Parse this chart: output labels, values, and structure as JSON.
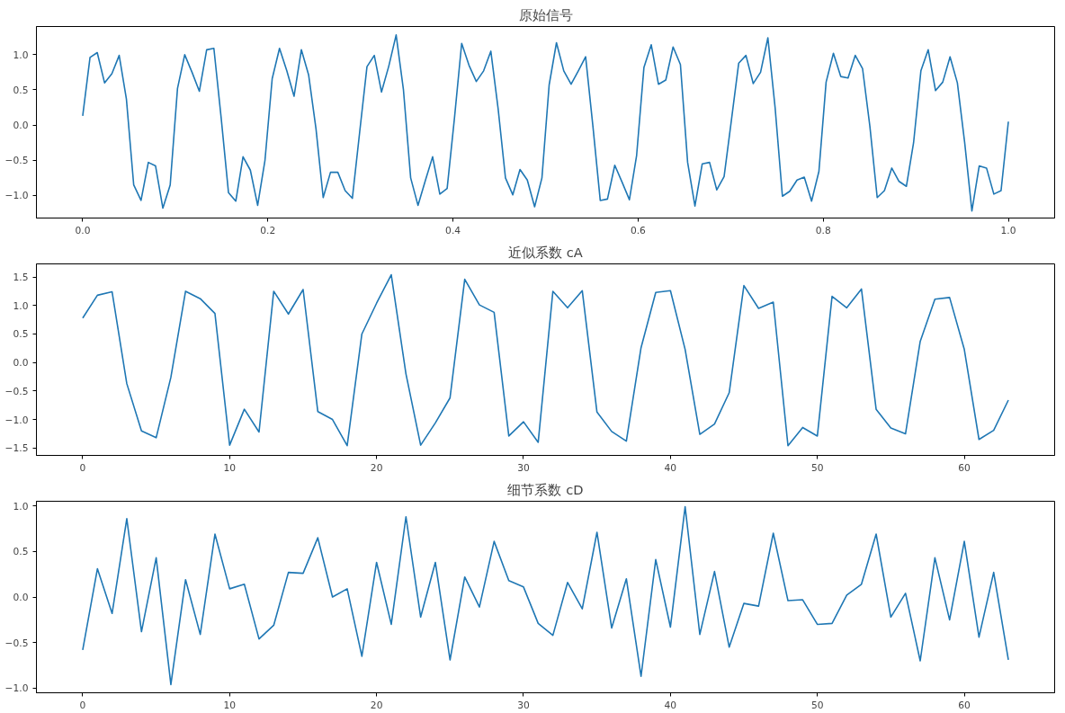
{
  "chart_data": [
    {
      "type": "line",
      "title": "原始信号",
      "x": [
        0,
        0.0079,
        0.0157,
        0.0236,
        0.0315,
        0.0394,
        0.0472,
        0.0551,
        0.063,
        0.0709,
        0.0787,
        0.0866,
        0.0945,
        0.1024,
        0.1102,
        0.1181,
        0.126,
        0.1339,
        0.1417,
        0.1496,
        0.1575,
        0.1654,
        0.1732,
        0.1811,
        0.189,
        0.1969,
        0.2047,
        0.2126,
        0.2205,
        0.2283,
        0.2362,
        0.2441,
        0.252,
        0.2598,
        0.2677,
        0.2756,
        0.2835,
        0.2913,
        0.2992,
        0.3071,
        0.315,
        0.3228,
        0.3307,
        0.3386,
        0.3465,
        0.3543,
        0.3622,
        0.3701,
        0.378,
        0.3858,
        0.3937,
        0.4016,
        0.4094,
        0.4173,
        0.4252,
        0.4331,
        0.4409,
        0.4488,
        0.4567,
        0.4646,
        0.4724,
        0.4803,
        0.4882,
        0.4961,
        0.5039,
        0.5118,
        0.5197,
        0.5276,
        0.5354,
        0.5433,
        0.5512,
        0.5591,
        0.5669,
        0.5748,
        0.5827,
        0.5906,
        0.5984,
        0.6063,
        0.6142,
        0.622,
        0.6299,
        0.6378,
        0.6457,
        0.6535,
        0.6614,
        0.6693,
        0.6772,
        0.685,
        0.6929,
        0.7008,
        0.7087,
        0.7165,
        0.7244,
        0.7323,
        0.7402,
        0.748,
        0.7559,
        0.7638,
        0.7717,
        0.7795,
        0.7874,
        0.7953,
        0.8031,
        0.811,
        0.8189,
        0.8268,
        0.8346,
        0.8425,
        0.8504,
        0.8583,
        0.8661,
        0.874,
        0.8819,
        0.8898,
        0.8976,
        0.9055,
        0.9134,
        0.9213,
        0.9291,
        0.937,
        0.9449,
        0.9528,
        0.9606,
        0.9685,
        0.9764,
        0.9843,
        0.9921,
        1
      ],
      "series": [
        {
          "color": "#1f77b4",
          "values": [
            0.13,
            0.96,
            1.03,
            0.6,
            0.73,
            0.99,
            0.37,
            -0.85,
            -1.07,
            -0.53,
            -0.58,
            -1.18,
            -0.85,
            0.52,
            1.0,
            0.75,
            0.48,
            1.07,
            1.09,
            0.1,
            -0.96,
            -1.08,
            -0.45,
            -0.64,
            -1.14,
            -0.5,
            0.66,
            1.09,
            0.77,
            0.41,
            1.07,
            0.71,
            -0.05,
            -1.03,
            -0.67,
            -0.67,
            -0.93,
            -1.04,
            -0.1,
            0.83,
            0.99,
            0.47,
            0.84,
            1.28,
            0.5,
            -0.75,
            -1.14,
            -0.79,
            -0.45,
            -0.98,
            -0.9,
            0.1,
            1.16,
            0.85,
            0.62,
            0.77,
            1.05,
            0.23,
            -0.75,
            -0.99,
            -0.63,
            -0.78,
            -1.16,
            -0.75,
            0.57,
            1.17,
            0.77,
            0.58,
            0.77,
            0.97,
            -0.02,
            -1.07,
            -1.05,
            -0.57,
            -0.81,
            -1.06,
            -0.43,
            0.82,
            1.14,
            0.58,
            0.64,
            1.11,
            0.86,
            -0.53,
            -1.15,
            -0.55,
            -0.53,
            -0.92,
            -0.73,
            0.07,
            0.88,
            0.99,
            0.59,
            0.75,
            1.24,
            0.25,
            -1.01,
            -0.94,
            -0.78,
            -0.74,
            -1.08,
            -0.66,
            0.61,
            1.02,
            0.69,
            0.67,
            0.99,
            0.8,
            -0.02,
            -1.03,
            -0.93,
            -0.61,
            -0.8,
            -0.87,
            -0.25,
            0.77,
            1.07,
            0.49,
            0.61,
            0.97,
            0.6,
            -0.25,
            -1.22,
            -0.58,
            -0.61,
            -0.98,
            -0.93,
            0.05
          ]
        }
      ],
      "xlim": [
        -0.05,
        1.05
      ],
      "ylim": [
        -1.32,
        1.4
      ],
      "xticks": [
        {
          "value": 0,
          "label": "0.0"
        },
        {
          "value": 0.2,
          "label": "0.2"
        },
        {
          "value": 0.4,
          "label": "0.4"
        },
        {
          "value": 0.6,
          "label": "0.6"
        },
        {
          "value": 0.8,
          "label": "0.8"
        },
        {
          "value": 1,
          "label": "1.0"
        }
      ],
      "yticks": [
        {
          "value": -1,
          "label": "−1.0"
        },
        {
          "value": -0.5,
          "label": "−0.5"
        },
        {
          "value": 0,
          "label": "0.0"
        },
        {
          "value": 0.5,
          "label": "0.5"
        },
        {
          "value": 1,
          "label": "1.0"
        }
      ]
    },
    {
      "type": "line",
      "title": "近似系数 cA",
      "x": [
        0,
        1,
        2,
        3,
        4,
        5,
        6,
        7,
        8,
        9,
        10,
        11,
        12,
        13,
        14,
        15,
        16,
        17,
        18,
        19,
        20,
        21,
        22,
        23,
        24,
        25,
        26,
        27,
        28,
        29,
        30,
        31,
        32,
        33,
        34,
        35,
        36,
        37,
        38,
        39,
        40,
        41,
        42,
        43,
        44,
        45,
        46,
        47,
        48,
        49,
        50,
        51,
        52,
        53,
        54,
        55,
        56,
        57,
        58,
        59,
        60,
        61,
        62,
        63
      ],
      "series": [
        {
          "color": "#1f77b4",
          "values": [
            0.78,
            1.18,
            1.24,
            -0.37,
            -1.2,
            -1.32,
            -0.26,
            1.25,
            1.12,
            0.86,
            -1.45,
            -0.82,
            -1.22,
            1.25,
            0.85,
            1.28,
            -0.86,
            -1.0,
            -1.46,
            0.5,
            1.04,
            1.54,
            -0.2,
            -1.45,
            -1.06,
            -0.62,
            1.46,
            1.01,
            0.88,
            -1.29,
            -1.04,
            -1.4,
            1.25,
            0.96,
            1.26,
            -0.87,
            -1.21,
            -1.38,
            0.26,
            1.23,
            1.26,
            0.23,
            -1.26,
            -1.08,
            -0.53,
            1.35,
            0.95,
            1.06,
            -1.46,
            -1.14,
            -1.29,
            1.16,
            0.96,
            1.29,
            -0.82,
            -1.15,
            -1.25,
            0.37,
            1.11,
            1.14,
            0.23,
            -1.35,
            -1.19,
            -0.66
          ]
        }
      ],
      "xlim": [
        -3.15,
        66.15
      ],
      "ylim": [
        -1.63,
        1.73
      ],
      "xticks": [
        0,
        10,
        20,
        30,
        40,
        50,
        60
      ],
      "yticks": [
        {
          "value": -1.5,
          "label": "−1.5"
        },
        {
          "value": -1,
          "label": "−1.0"
        },
        {
          "value": -0.5,
          "label": "−0.5"
        },
        {
          "value": 0,
          "label": "0.0"
        },
        {
          "value": 0.5,
          "label": "0.5"
        },
        {
          "value": 1,
          "label": "1.0"
        },
        {
          "value": 1.5,
          "label": "1.5"
        }
      ]
    },
    {
      "type": "line",
      "title": "细节系数 cD",
      "x": [
        0,
        1,
        2,
        3,
        4,
        5,
        6,
        7,
        8,
        9,
        10,
        11,
        12,
        13,
        14,
        15,
        16,
        17,
        18,
        19,
        20,
        21,
        22,
        23,
        24,
        25,
        26,
        27,
        28,
        29,
        30,
        31,
        32,
        33,
        34,
        35,
        36,
        37,
        38,
        39,
        40,
        41,
        42,
        43,
        44,
        45,
        46,
        47,
        48,
        49,
        50,
        51,
        52,
        53,
        54,
        55,
        56,
        57,
        58,
        59,
        60,
        61,
        62,
        63
      ],
      "series": [
        {
          "color": "#1f77b4",
          "values": [
            -0.58,
            0.31,
            -0.18,
            0.86,
            -0.38,
            0.43,
            -0.96,
            0.19,
            -0.41,
            0.69,
            0.09,
            0.14,
            -0.46,
            -0.31,
            0.27,
            0.26,
            0.65,
            0.0,
            0.09,
            -0.65,
            0.38,
            -0.3,
            0.88,
            -0.22,
            0.38,
            -0.69,
            0.22,
            -0.11,
            0.61,
            0.18,
            0.11,
            -0.29,
            -0.42,
            0.16,
            -0.13,
            0.71,
            -0.34,
            0.2,
            -0.87,
            0.41,
            -0.33,
            0.99,
            -0.41,
            0.28,
            -0.55,
            -0.07,
            -0.1,
            0.7,
            -0.04,
            -0.03,
            -0.3,
            -0.29,
            0.02,
            0.14,
            0.69,
            -0.22,
            0.04,
            -0.7,
            0.43,
            -0.25,
            0.61,
            -0.44,
            0.27,
            -0.69
          ]
        }
      ],
      "xlim": [
        -3.15,
        66.15
      ],
      "ylim": [
        -1.05,
        1.05
      ],
      "xticks": [
        0,
        10,
        20,
        30,
        40,
        50,
        60
      ],
      "yticks": [
        {
          "value": -1,
          "label": "−1.0"
        },
        {
          "value": -0.5,
          "label": "−0.5"
        },
        {
          "value": 0,
          "label": "0.0"
        },
        {
          "value": 0.5,
          "label": "0.5"
        },
        {
          "value": 1,
          "label": "1.0"
        }
      ]
    }
  ]
}
